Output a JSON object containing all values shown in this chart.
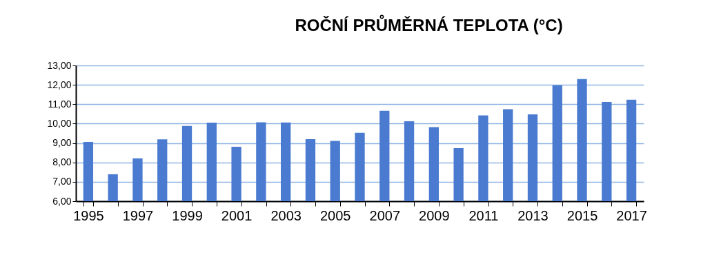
{
  "chart_data": {
    "type": "bar",
    "title": "ROČNÍ PRŮMĚRNÁ TEPLOTA  (°C)",
    "categories": [
      "1995",
      null,
      "1997",
      null,
      "1999",
      null,
      "2001",
      null,
      "2003",
      null,
      "2005",
      null,
      "2007",
      null,
      "2009",
      null,
      "2011",
      null,
      "2013",
      null,
      "2015",
      null,
      "2017"
    ],
    "values": [
      9.06,
      7.39,
      8.21,
      9.19,
      9.88,
      10.05,
      8.81,
      10.07,
      10.06,
      9.2,
      9.11,
      9.53,
      10.66,
      10.12,
      9.82,
      8.74,
      10.42,
      10.74,
      10.48,
      11.98,
      12.3,
      11.12,
      11.23
    ],
    "color": "#4a7bd0",
    "ylim": [
      6,
      13
    ],
    "yticks": [
      {
        "value": 6,
        "label": "6,00"
      },
      {
        "value": 7,
        "label": "7,00"
      },
      {
        "value": 8,
        "label": "8,00"
      },
      {
        "value": 9,
        "label": "9,00"
      },
      {
        "value": 10,
        "label": "10,00"
      },
      {
        "value": 11,
        "label": "11,00"
      },
      {
        "value": 12,
        "label": "12,00"
      },
      {
        "value": 13,
        "label": "13,00"
      }
    ],
    "grid": "y"
  }
}
